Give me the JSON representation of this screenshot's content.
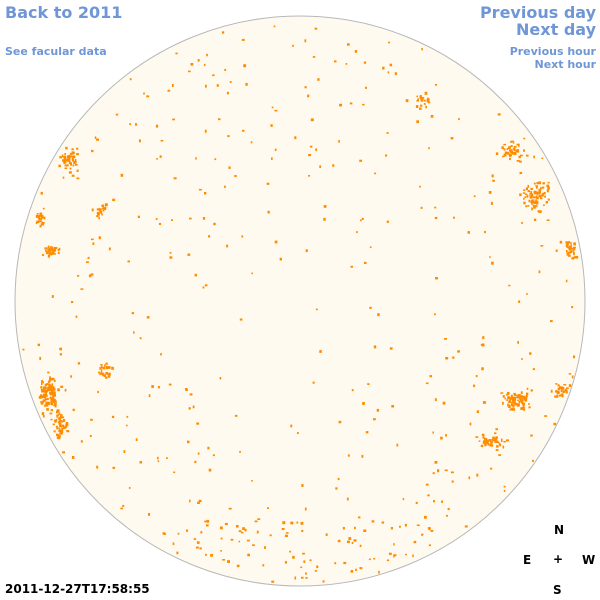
{
  "nav": {
    "back": "Back to 2011",
    "facular": "See facular data",
    "previous_day": "Previous day",
    "next_day": "Next day",
    "previous_hour": "Previous hour",
    "next_hour": "Next hour"
  },
  "compass": {
    "north": "N",
    "south": "S",
    "east": "E",
    "west": "W",
    "center": "+"
  },
  "timestamp": "2011-12-27T17:58:55",
  "colors": {
    "disk_fill": "#fffaf0",
    "disk_stroke": "#b8b8b8",
    "faculae": "#ff8c00",
    "link": "#6f96d6"
  }
}
